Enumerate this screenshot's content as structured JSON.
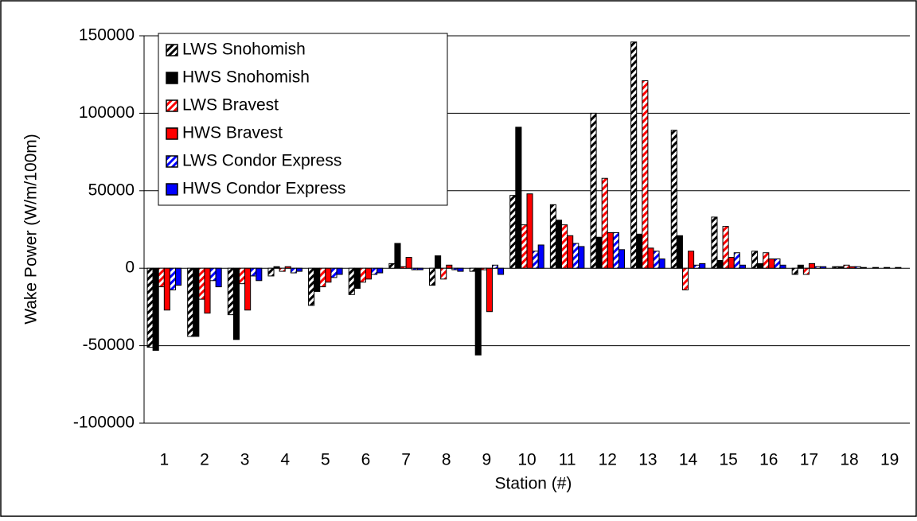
{
  "chart_data": {
    "type": "bar",
    "x_label": "Station (#)",
    "y_label": "Wake Power (W/m/100m)",
    "categories": [
      "1",
      "2",
      "3",
      "4",
      "5",
      "6",
      "7",
      "8",
      "9",
      "10",
      "11",
      "12",
      "13",
      "14",
      "15",
      "16",
      "17",
      "18",
      "19"
    ],
    "series": [
      {
        "name": "LWS Snohomish",
        "color": "#000000",
        "pattern": "hatch",
        "values": [
          -51000,
          -44000,
          -30000,
          -5000,
          -24000,
          -17000,
          3000,
          -11000,
          -2000,
          47000,
          41000,
          100000,
          146000,
          89000,
          33000,
          11000,
          -4000,
          1000,
          500
        ]
      },
      {
        "name": "HWS Snohomish",
        "color": "#000000",
        "pattern": "solid",
        "values": [
          -53000,
          -44000,
          -46000,
          1000,
          -15000,
          -13000,
          16000,
          8000,
          -56000,
          91000,
          31000,
          20000,
          22000,
          21000,
          5000,
          3000,
          2000,
          1000,
          0
        ]
      },
      {
        "name": "LWS Bravest",
        "color": "#ff0000",
        "pattern": "hatch",
        "values": [
          -12000,
          -20000,
          -10000,
          -2000,
          -12000,
          -9000,
          1000,
          -7000,
          -1000,
          28000,
          28000,
          58000,
          121000,
          -14000,
          27000,
          10000,
          -4000,
          2000,
          500
        ]
      },
      {
        "name": "HWS Bravest",
        "color": "#ff0000",
        "pattern": "solid",
        "values": [
          -27000,
          -29000,
          -27000,
          1000,
          -9000,
          -7000,
          7000,
          2000,
          -28000,
          48000,
          21000,
          23000,
          13000,
          11000,
          7000,
          6000,
          3000,
          1000,
          0
        ]
      },
      {
        "name": "LWS Condor Express",
        "color": "#0000ff",
        "pattern": "hatch",
        "values": [
          -14000,
          -8000,
          -5000,
          -3000,
          -6000,
          -4000,
          -1000,
          -1000,
          2000,
          11000,
          16000,
          23000,
          11000,
          2000,
          10000,
          6000,
          1000,
          1000,
          500
        ]
      },
      {
        "name": "HWS Condor Express",
        "color": "#0000ff",
        "pattern": "solid",
        "values": [
          -11000,
          -12000,
          -8000,
          -2000,
          -4000,
          -3000,
          -1000,
          -2000,
          -4000,
          15000,
          14000,
          12000,
          6000,
          3000,
          2000,
          2000,
          1000,
          500,
          0
        ]
      }
    ],
    "ylim": [
      -100000,
      150000
    ],
    "yticks": [
      -100000,
      -50000,
      0,
      50000,
      100000,
      150000
    ],
    "grid": true,
    "legend": "top-left"
  }
}
